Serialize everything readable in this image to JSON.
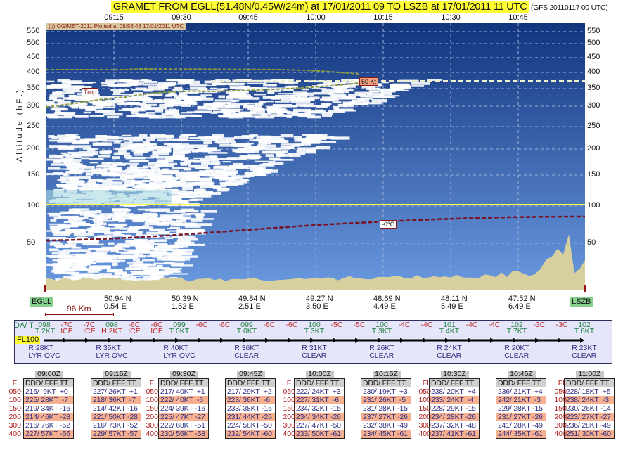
{
  "title": "GRAMET FROM EGLL(51.48N/0.45W/24m) at 17/01/2011 09   TO   LSZB at 17/01/2011 11 UTC",
  "model": "(GFS 20110117 00 UTC)",
  "copyright": "(c) OGIMET-2011 Plotted at 09:56:48 17/01/2011 UTC",
  "chart_data": {
    "type": "cross-section",
    "title": "GRAMET FROM EGLL(51.48N/0.45W/24m) at 17/01/2011 09   TO   LSZB at 17/01/2011 11 UTC",
    "ylabel": "Altitude (hFt)",
    "x_ticks": [
      "09:15",
      "09:30",
      "09:45",
      "10:00",
      "10:15",
      "10:30",
      "10:45"
    ],
    "y_ticks": [
      550,
      500,
      450,
      400,
      350,
      300,
      250,
      200,
      150,
      100,
      50
    ],
    "grid": true,
    "annotations": {
      "tropopause": "Trop",
      "jet": "50 Kt",
      "freezing": "-0°C"
    },
    "freezing_level_hft": {
      "start": 75,
      "end": 88
    },
    "fl_reference": 100,
    "colors": {
      "sky_top": "#12357e",
      "sky_bottom": "#6a9ae0",
      "cloud": "#ffffff",
      "terrain": "#d8cf9e",
      "freezing": "#7a1020",
      "fl_line": "#ffff40"
    }
  },
  "route": {
    "start": "EGLL",
    "end": "LSZB",
    "scale": "96 Km",
    "waypoints": [
      [
        "50.94 N",
        "0.54 E"
      ],
      [
        "50.39 N",
        "1.52 E"
      ],
      [
        "49.84 N",
        "2.51 E"
      ],
      [
        "49.27 N",
        "3.50 E"
      ],
      [
        "48.69 N",
        "4.49 E"
      ],
      [
        "48.11 N",
        "5.49 E"
      ],
      [
        "47.52 N",
        "6.49 E"
      ]
    ]
  },
  "strip": {
    "label": "DA/ T",
    "fl": "FL100",
    "top": [
      "098",
      "-7C",
      "-7C",
      "098",
      "-6C",
      "-6C",
      "099",
      "-6C",
      "-6C",
      "099",
      "-6C",
      "-6C",
      "100",
      "-5C",
      "-5C",
      "100",
      "-4C",
      "-4C",
      "101",
      "-4C",
      "-4C",
      "102",
      "-3C",
      "-3C",
      "102"
    ],
    "mid": {
      "0": "T 2KT",
      "1": "ICE",
      "2": "ICE",
      "3": "H 2KT",
      "4": "ICE",
      "5": "ICE",
      "6": "T 0KT",
      "9": "T 0KT",
      "12": "T 3KT",
      "15": "T 3KT",
      "18": "T 4KT",
      "21": "T 7KT",
      "24": "T 6KT"
    },
    "bottom": [
      [
        "R 28KT",
        "LYR OVC"
      ],
      [
        "R 35KT",
        "LYR OVC"
      ],
      [
        "R 40KT",
        "LYR OVC"
      ],
      [
        "R 36KT",
        "CLEAR"
      ],
      [
        "R 31KT",
        "CLEAR"
      ],
      [
        "R 26KT",
        "CLEAR"
      ],
      [
        "R 24KT",
        "CLEAR"
      ],
      [
        "R 20KT",
        "CLEAR"
      ],
      [
        "R 23KT",
        "CLEAR"
      ]
    ]
  },
  "tables": {
    "fl_header": "FL",
    "header": "DDD/ FFF TT",
    "levels": [
      "050",
      "100",
      "150",
      "200",
      "300",
      "400"
    ],
    "items": [
      {
        "time": "09:00Z",
        "rows": [
          "216/  9KT  +0",
          "225/ 28KT  -7",
          "219/ 34KT -16",
          "214/ 46KT -28",
          "216/ 76KT -52",
          "227/ 57KT -56"
        ]
      },
      {
        "time": "09:15Z",
        "rows": [
          "227/ 26KT  +1",
          "218/ 36KT  -7",
          "214/ 42KT -16",
          "221/ 50KT -28",
          "216/ 73KT -52",
          "229/ 57KT -57"
        ]
      },
      {
        "time": "09:30Z",
        "rows": [
          "217/ 40KT  +1",
          "222/ 40KT  -6",
          "224/ 39KT -16",
          "225/ 47KT -27",
          "222/ 68KT -51",
          "230/ 56KT -58"
        ]
      },
      {
        "time": "09:45Z",
        "rows": [
          "217/ 29KT  +2",
          "223/ 36KT  -6",
          "233/ 38KT -15",
          "231/ 44KT -26",
          "224/ 58KT -50",
          "232/ 54KT -60"
        ]
      },
      {
        "time": "10:00Z",
        "rows": [
          "222/ 24KT  +3",
          "227/ 31KT  -6",
          "234/ 32KT -15",
          "234/ 34KT -26",
          "227/ 47KT -50",
          "233/ 50KT -61"
        ]
      },
      {
        "time": "10:15Z",
        "rows": [
          "230/ 19KT  +3",
          "231/ 26KT  -5",
          "231/ 28KT -15",
          "237/ 27KT -26",
          "232/ 38KT -49",
          "234/ 45KT -61"
        ]
      },
      {
        "time": "10:30Z",
        "rows": [
          "238/ 20KT  +4",
          "233/ 24KT  -4",
          "228/ 29KT -15",
          "234/ 28KT -26",
          "237/ 32KT -48",
          "237/ 41KT -61"
        ]
      },
      {
        "time": "10:45Z",
        "rows": [
          "236/ 21KT  +4",
          "242/ 21KT  -3",
          "229/ 28KT -15",
          "231/ 27KT -26",
          "241/ 28KT -49",
          "244/ 35KT -61"
        ]
      },
      {
        "time": "11:00Z",
        "rows": [
          "228/ 18KT  +5",
          "238/ 24KT  -3",
          "230/ 26KT -14",
          "223/ 27KT -27",
          "236/ 28KT -49",
          "251/ 30KT -60"
        ]
      }
    ]
  }
}
